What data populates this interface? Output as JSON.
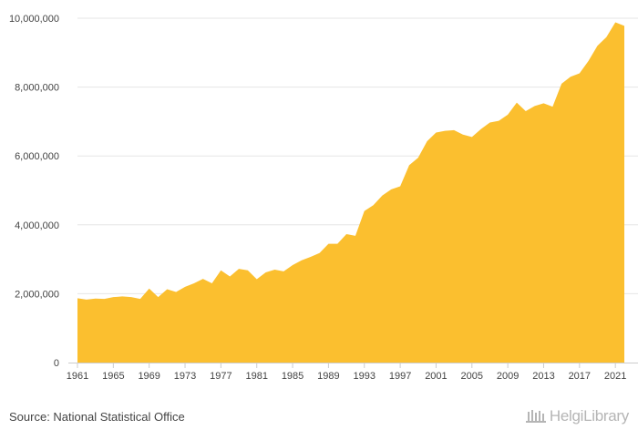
{
  "chart_data": {
    "type": "area",
    "color": "#FBBF2F",
    "grid": true,
    "ylim": [
      0,
      10000000
    ],
    "yticks": [
      0,
      2000000,
      4000000,
      6000000,
      8000000,
      10000000
    ],
    "ytick_labels": [
      "0",
      "2,000,000",
      "4,000,000",
      "6,000,000",
      "8,000,000",
      "10,000,000"
    ],
    "xticks": [
      1961,
      1965,
      1969,
      1973,
      1977,
      1981,
      1985,
      1989,
      1993,
      1997,
      2001,
      2005,
      2009,
      2013,
      2017,
      2021
    ],
    "xtick_labels": [
      "1961",
      "1965",
      "1969",
      "1973",
      "1977",
      "1981",
      "1985",
      "1989",
      "1993",
      "1997",
      "2001",
      "2005",
      "2009",
      "2013",
      "2017",
      "2021"
    ],
    "x": [
      1961,
      1962,
      1963,
      1964,
      1965,
      1966,
      1967,
      1968,
      1969,
      1970,
      1971,
      1972,
      1973,
      1974,
      1975,
      1976,
      1977,
      1978,
      1979,
      1980,
      1981,
      1982,
      1983,
      1984,
      1985,
      1986,
      1987,
      1988,
      1989,
      1990,
      1991,
      1992,
      1993,
      1994,
      1995,
      1996,
      1997,
      1998,
      1999,
      2000,
      2001,
      2002,
      2003,
      2004,
      2005,
      2006,
      2007,
      2008,
      2009,
      2010,
      2011,
      2012,
      2013,
      2014,
      2015,
      2016,
      2017,
      2018,
      2019,
      2020,
      2021,
      2022
    ],
    "values": [
      1870000,
      1830000,
      1860000,
      1850000,
      1900000,
      1920000,
      1900000,
      1850000,
      2150000,
      1900000,
      2130000,
      2050000,
      2200000,
      2300000,
      2430000,
      2300000,
      2680000,
      2500000,
      2720000,
      2680000,
      2420000,
      2620000,
      2700000,
      2650000,
      2830000,
      2970000,
      3070000,
      3180000,
      3450000,
      3450000,
      3730000,
      3680000,
      4400000,
      4570000,
      4850000,
      5030000,
      5120000,
      5730000,
      5950000,
      6430000,
      6680000,
      6730000,
      6750000,
      6620000,
      6550000,
      6780000,
      6970000,
      7020000,
      7200000,
      7550000,
      7300000,
      7450000,
      7530000,
      7430000,
      8100000,
      8300000,
      8400000,
      8760000,
      9200000,
      9450000,
      9880000,
      9780000
    ]
  },
  "footer": {
    "source": "Source: National Statistical Office",
    "logo_text": "HelgiLibrary"
  }
}
